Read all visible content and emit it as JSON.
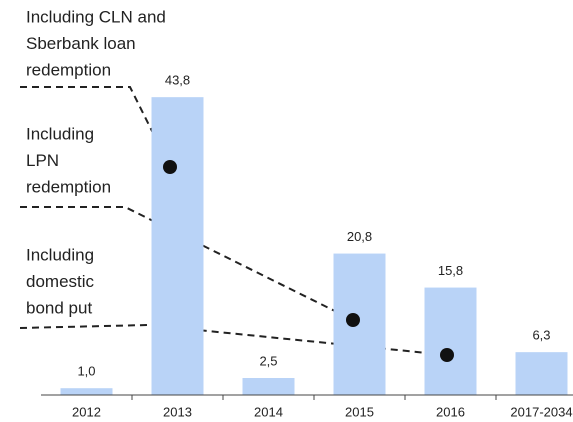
{
  "chart_data": {
    "type": "bar",
    "categories": [
      "2012",
      "2013",
      "2014",
      "2015",
      "2016",
      "2017-2034"
    ],
    "values": [
      1.0,
      43.8,
      2.5,
      20.8,
      15.8,
      6.3
    ],
    "value_labels": [
      "1,0",
      "43,8",
      "2,5",
      "20,8",
      "15,8",
      "6,3"
    ],
    "color": "#b9d3f7",
    "annotations": [
      [
        "Including CLN and",
        "Sberbank loan",
        "redemption"
      ],
      [
        "Including",
        "LPN",
        "redemption"
      ],
      [
        "Including",
        "domestic",
        "bond put"
      ]
    ]
  }
}
